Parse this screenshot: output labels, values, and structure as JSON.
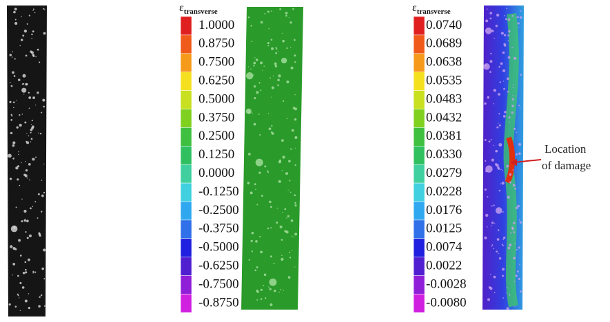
{
  "legends": [
    {
      "symbol": "ε",
      "subscript": "transverse",
      "labels": [
        "1.0000",
        "0.8750",
        "0.7500",
        "0.6250",
        "0.5000",
        "0.3750",
        "0.2500",
        "0.1250",
        "0.0000",
        "-0.1250",
        "-0.2500",
        "-0.3750",
        "-0.5000",
        "-0.6250",
        "-0.7500",
        "-0.8750"
      ]
    },
    {
      "symbol": "ε",
      "subscript": "transverse",
      "labels": [
        "0.0740",
        "0.0689",
        "0.0638",
        "0.0535",
        "0.0483",
        "0.0432",
        "0.0381",
        "0.0330",
        "0.0279",
        "0.0228",
        "0.0176",
        "0.0125",
        "0.0074",
        "0.0022",
        "-0.0028",
        "-0.0080"
      ]
    }
  ],
  "swatch_colors": [
    "#e02020",
    "#f05a1a",
    "#f59a1a",
    "#f5e020",
    "#c8e020",
    "#80d020",
    "#40c040",
    "#30c060",
    "#40d0a0",
    "#40d0e0",
    "#30a8f0",
    "#3070e8",
    "#2020e0",
    "#5020d0",
    "#9020d8",
    "#d020e0"
  ],
  "annotation": {
    "line1": "Location",
    "line2": "of damage"
  }
}
